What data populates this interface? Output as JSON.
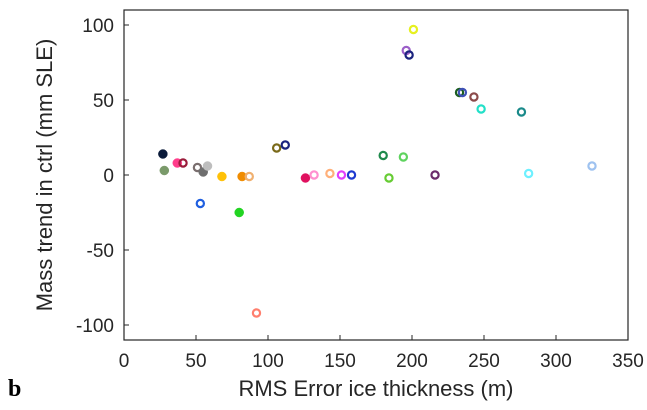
{
  "chart_data": {
    "type": "scatter",
    "xlabel": "RMS Error ice thickness (m)",
    "ylabel": "Mass trend in ctrl (mm SLE)",
    "xlim": [
      0,
      350
    ],
    "ylim": [
      -110,
      110
    ],
    "xticks": [
      "0",
      "50",
      "100",
      "150",
      "200",
      "250",
      "300",
      "350"
    ],
    "yticks": [
      "100",
      "50",
      "0",
      "-50",
      "-100"
    ],
    "grid": false,
    "points": [
      {
        "x": 27,
        "y": 14,
        "color": "#0b1b3a",
        "filled": true
      },
      {
        "x": 28,
        "y": 3,
        "color": "#7a9a6a",
        "filled": true
      },
      {
        "x": 37,
        "y": 8,
        "color": "#ff3d8b",
        "filled": true
      },
      {
        "x": 41,
        "y": 8,
        "color": "#9a1b3a",
        "filled": false
      },
      {
        "x": 51,
        "y": 5,
        "color": "#7a6e6e",
        "filled": false
      },
      {
        "x": 53,
        "y": -19,
        "color": "#1f5fe0",
        "filled": false
      },
      {
        "x": 55,
        "y": 2,
        "color": "#6e6e6e",
        "filled": true
      },
      {
        "x": 58,
        "y": 6,
        "color": "#bdbdbd",
        "filled": true
      },
      {
        "x": 68,
        "y": -1,
        "color": "#ffc107",
        "filled": true
      },
      {
        "x": 80,
        "y": -25,
        "color": "#22d422",
        "filled": true
      },
      {
        "x": 82,
        "y": -1,
        "color": "#f08c00",
        "filled": true
      },
      {
        "x": 87,
        "y": -1,
        "color": "#f0b070",
        "filled": false
      },
      {
        "x": 92,
        "y": -92,
        "color": "#ff7f6e",
        "filled": false
      },
      {
        "x": 106,
        "y": 18,
        "color": "#7a6a1a",
        "filled": false
      },
      {
        "x": 112,
        "y": 20,
        "color": "#1a237e",
        "filled": false
      },
      {
        "x": 126,
        "y": -2,
        "color": "#e0115f",
        "filled": true
      },
      {
        "x": 132,
        "y": 0,
        "color": "#ff8fcf",
        "filled": false
      },
      {
        "x": 143,
        "y": 1,
        "color": "#ffb07a",
        "filled": false
      },
      {
        "x": 151,
        "y": 0,
        "color": "#e040fb",
        "filled": false
      },
      {
        "x": 158,
        "y": 0,
        "color": "#1e3ad0",
        "filled": false
      },
      {
        "x": 180,
        "y": 13,
        "color": "#1f8a4c",
        "filled": false
      },
      {
        "x": 184,
        "y": -2,
        "color": "#66cc33",
        "filled": false
      },
      {
        "x": 194,
        "y": 12,
        "color": "#5fd35f",
        "filled": false
      },
      {
        "x": 196,
        "y": 83,
        "color": "#9c5fc9",
        "filled": false
      },
      {
        "x": 198,
        "y": 80,
        "color": "#1a237e",
        "filled": false
      },
      {
        "x": 201,
        "y": 97,
        "color": "#e6f020",
        "filled": false
      },
      {
        "x": 216,
        "y": 0,
        "color": "#6a2a6a",
        "filled": false
      },
      {
        "x": 233,
        "y": 55,
        "color": "#1b5e20",
        "filled": false
      },
      {
        "x": 235,
        "y": 55,
        "color": "#3f51b5",
        "filled": false
      },
      {
        "x": 243,
        "y": 52,
        "color": "#8b4a4a",
        "filled": false
      },
      {
        "x": 248,
        "y": 44,
        "color": "#22e0c8",
        "filled": false
      },
      {
        "x": 276,
        "y": 42,
        "color": "#1a8a8a",
        "filled": false
      },
      {
        "x": 281,
        "y": 1,
        "color": "#6ef0ff",
        "filled": false
      },
      {
        "x": 325,
        "y": 6,
        "color": "#9ec2f0",
        "filled": false
      }
    ]
  },
  "panel_label": "b"
}
